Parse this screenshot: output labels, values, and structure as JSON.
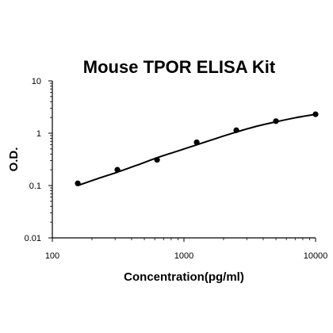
{
  "chart_data": {
    "type": "scatter",
    "title": "Mouse TPOR ELISA Kit",
    "xlabel": "Concentration(pg/ml)",
    "ylabel": "O.D.",
    "x_scale": "log",
    "y_scale": "log",
    "xlim": [
      100,
      10000
    ],
    "ylim": [
      0.01,
      10
    ],
    "x_ticks": [
      100,
      1000,
      10000
    ],
    "x_tick_labels": [
      "100",
      "1000",
      "10000"
    ],
    "y_ticks": [
      0.01,
      0.1,
      1,
      10
    ],
    "y_tick_labels": [
      "0.01",
      "0.1",
      "1",
      "10"
    ],
    "grid": false,
    "series": [
      {
        "points": [
          {
            "x": 156,
            "y": 0.11
          },
          {
            "x": 312,
            "y": 0.2
          },
          {
            "x": 625,
            "y": 0.31
          },
          {
            "x": 1250,
            "y": 0.67
          },
          {
            "x": 2500,
            "y": 1.14
          },
          {
            "x": 5000,
            "y": 1.7
          },
          {
            "x": 10000,
            "y": 2.3
          }
        ],
        "fit_curve": [
          {
            "x": 156,
            "y": 0.1
          },
          {
            "x": 220,
            "y": 0.135
          },
          {
            "x": 312,
            "y": 0.18
          },
          {
            "x": 440,
            "y": 0.245
          },
          {
            "x": 625,
            "y": 0.34
          },
          {
            "x": 880,
            "y": 0.45
          },
          {
            "x": 1250,
            "y": 0.6
          },
          {
            "x": 1770,
            "y": 0.8
          },
          {
            "x": 2500,
            "y": 1.05
          },
          {
            "x": 3540,
            "y": 1.35
          },
          {
            "x": 5000,
            "y": 1.65
          },
          {
            "x": 7070,
            "y": 1.98
          },
          {
            "x": 10000,
            "y": 2.3
          }
        ]
      }
    ],
    "colors": {
      "points": "#000000",
      "curve": "#000000",
      "axis": "#000000"
    }
  }
}
